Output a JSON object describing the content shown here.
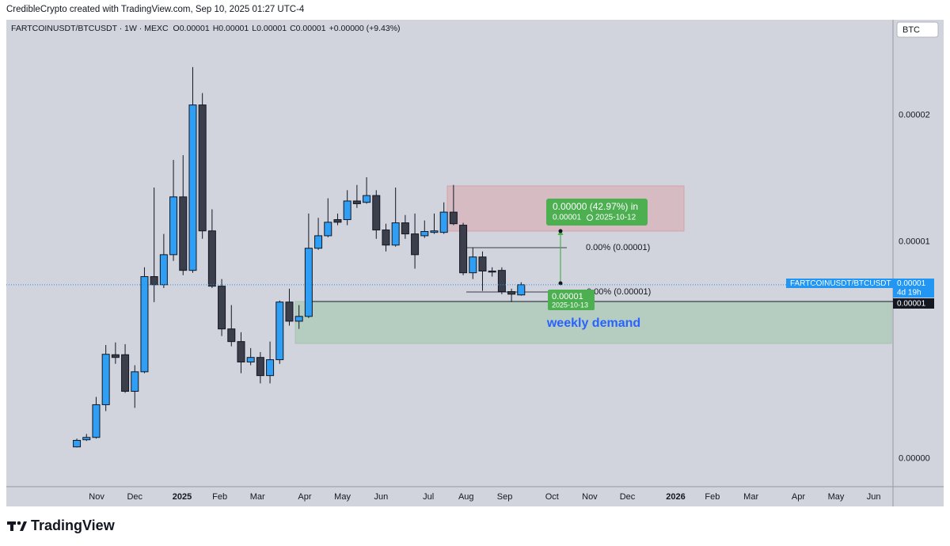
{
  "header": {
    "text": "CredibleCrypto created with TradingView.com, Sep 10, 2025 01:27 UTC-4"
  },
  "chart_data": {
    "type": "candlestick",
    "symbol": "FARTCOINUSDT/BTCUSDT · 1W · MEXC",
    "ohlc_legend": [
      {
        "label": "O",
        "value": "0.00001"
      },
      {
        "label": "H",
        "value": "0.00001"
      },
      {
        "label": "L",
        "value": "0.00001"
      },
      {
        "label": "C",
        "value": "0.00001"
      }
    ],
    "change": "+0.00000 (+9.43%)",
    "currency": "BTC",
    "log_scale": true,
    "grid": false,
    "up_color": "#2f9ef5",
    "down_color": "#3b3e4b",
    "open": [
      5.19e-06,
      5.31e-06,
      5.35e-06,
      5.94e-06,
      6.97e-06,
      6.97e-06,
      6.2e-06,
      6.6e-06,
      8.95e-06,
      8.72e-06,
      9.6e-06,
      1.155e-05,
      9.13e-06,
      1.55e-05,
      1.036e-05,
      8.68e-06,
      7.57e-06,
      7.27e-06,
      6.81e-06,
      6.91e-06,
      6.52e-06,
      6.86e-06,
      8.25e-06,
      7.76e-06,
      7.88e-06,
      9.8e-06,
      1.02e-05,
      1.074e-05,
      1.074e-05,
      1.14e-05,
      1.135e-05,
      1.16e-05,
      1.039e-05,
      9.9e-06,
      1.063e-05,
      1.026e-05,
      1.02e-05,
      1.031e-05,
      1.031e-05,
      1.1e-05,
      1.055e-05,
      9.06e-06,
      9.53e-06,
      9.11e-06,
      9.13e-06,
      8.53e-06,
      8.44e-06
    ],
    "high": [
      5.33e-06,
      5.41e-06,
      6.09e-06,
      7.19e-06,
      7.25e-06,
      7.21e-06,
      6.74e-06,
      9.22e-06,
      1.19e-05,
      1.026e-05,
      1.3e-05,
      1.32e-05,
      1.75e-05,
      1.61e-05,
      1.11e-05,
      8.88e-06,
      8.17e-06,
      7.49e-06,
      7.12e-06,
      7.03e-06,
      7.27e-06,
      8.29e-06,
      8.61e-06,
      8.17e-06,
      1.095e-05,
      1.08e-05,
      1.15e-05,
      1.095e-05,
      1.18e-05,
      1.2e-05,
      1.23e-05,
      1.18e-05,
      1.06e-05,
      1.19e-05,
      1.09e-05,
      1.095e-05,
      1.071e-05,
      1.095e-05,
      1.135e-05,
      1.2e-05,
      1.063e-05,
      9.82e-06,
      9.7e-06,
      9.22e-06,
      9.22e-06,
      8.61e-06,
      8.79e-06
    ],
    "low": [
      5.18e-06,
      5.29e-06,
      5.33e-06,
      5.82e-06,
      6.77e-06,
      6.17e-06,
      5.88e-06,
      6.57e-06,
      8.25e-06,
      8.63e-06,
      9.41e-06,
      8.99e-06,
      9.06e-06,
      1.01e-05,
      8.63e-06,
      7.4e-06,
      7.16e-06,
      6.57e-06,
      6.74e-06,
      6.36e-06,
      6.36e-06,
      6.77e-06,
      7.65e-06,
      7.57e-06,
      7.84e-06,
      9.75e-06,
      1.015e-05,
      1.055e-05,
      1.055e-05,
      1.115e-05,
      1.13e-05,
      1.01e-05,
      9.7e-06,
      9.85e-06,
      1.01e-05,
      9.18e-06,
      1.013e-05,
      1.026e-05,
      1.026e-05,
      1.055e-05,
      8.99e-06,
      8.88e-06,
      8.55e-06,
      8.95e-06,
      8.46e-06,
      8.25e-06,
      8.42e-06
    ],
    "close": [
      5.3e-06,
      5.35e-06,
      5.94e-06,
      6.98e-06,
      6.91e-06,
      6.2e-06,
      6.6e-06,
      8.95e-06,
      8.72e-06,
      9.6e-06,
      1.155e-05,
      9.13e-06,
      1.55e-05,
      1.036e-05,
      8.68e-06,
      7.57e-06,
      7.27e-06,
      6.81e-06,
      6.91e-06,
      6.52e-06,
      6.86e-06,
      8.25e-06,
      7.76e-06,
      7.88e-06,
      9.8e-06,
      1.02e-05,
      1.065e-05,
      1.065e-05,
      1.14e-05,
      1.13e-05,
      1.16e-05,
      1.039e-05,
      9.9e-06,
      1.063e-05,
      1.026e-05,
      9.6e-06,
      1.034e-05,
      1.036e-05,
      1.1e-05,
      1.06e-05,
      9.06e-06,
      9.53e-06,
      9.11e-06,
      9.08e-06,
      8.53e-06,
      8.46e-06,
      8.72e-06
    ],
    "ylim": [
      4.57e-06,
      2.01e-05
    ],
    "yticks": [
      {
        "value": 1.5e-05,
        "label": "0.00002"
      },
      {
        "value": 1e-05,
        "label": "0.00001"
      },
      {
        "value": 5e-06,
        "label": "0.00000"
      }
    ],
    "xlim": [
      -7.3,
      84.5
    ],
    "xticks": [
      {
        "value": 2.05,
        "label": "Nov"
      },
      {
        "value": 6,
        "label": "Dec"
      },
      {
        "value": 10.9,
        "label": "2025"
      },
      {
        "value": 14.8,
        "label": "Feb"
      },
      {
        "value": 18.7,
        "label": "Mar"
      },
      {
        "value": 23.6,
        "label": "Apr"
      },
      {
        "value": 27.5,
        "label": "May"
      },
      {
        "value": 31.5,
        "label": "Jun"
      },
      {
        "value": 36.4,
        "label": "Jul"
      },
      {
        "value": 40.3,
        "label": "Aug"
      },
      {
        "value": 44.3,
        "label": "Sep"
      },
      {
        "value": 49.2,
        "label": "Oct"
      },
      {
        "value": 53.1,
        "label": "Nov"
      },
      {
        "value": 57,
        "label": "Dec"
      },
      {
        "value": 62,
        "label": "2026"
      },
      {
        "value": 65.8,
        "label": "Feb"
      },
      {
        "value": 69.8,
        "label": "Mar"
      },
      {
        "value": 74.7,
        "label": "Apr"
      },
      {
        "value": 78.6,
        "label": "May"
      },
      {
        "value": 82.5,
        "label": "Jun"
      }
    ],
    "annotations": {
      "measure_change": "0.00000 (42.97%) in",
      "measure_price": "0.00001",
      "measure_date": "2025-10-12",
      "cursor_price": "0.00001",
      "cursor_date": "2025-10-13",
      "level_upper": "0.00% (0.00001)",
      "level_lower": "0.00% (0.00001)",
      "zone_label": "weekly demand"
    },
    "price_labels": {
      "symbol": "FARTCOINUSDT/BTCUSDT",
      "last_price": "0.00001",
      "countdown": "4d 19h",
      "line_price": "0.00001"
    }
  },
  "footer": {
    "brand": "TradingView"
  }
}
